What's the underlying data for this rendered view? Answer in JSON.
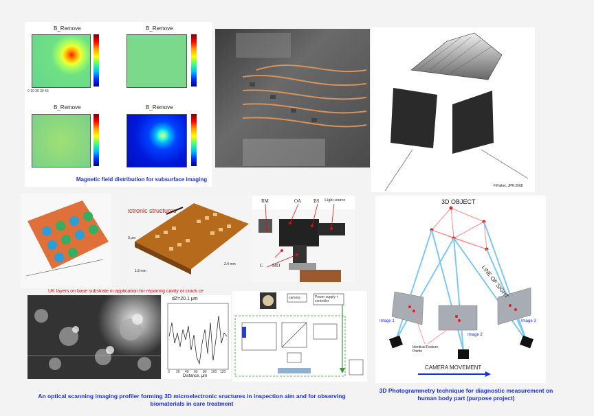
{
  "magnetic": {
    "map_titles": [
      "B_Remove",
      "B_Remove",
      "B_Remove",
      "B_Remove"
    ],
    "caption": "Magnetic field distribution for subsurface imaging"
  },
  "photogram_top": {
    "credit": "F.Paiker, JPR.2008"
  },
  "micro": {
    "title": "Microelectronic structures",
    "scale_3um": "3 μm",
    "scale_24": "2.4 mm",
    "scale_18": "1.8 mm",
    "overlay": "UK layers on base substrate in application for repairing cavity or crack ce"
  },
  "optics": {
    "labels": [
      "RM",
      "OA",
      "BS",
      "Light source",
      "C",
      "MO"
    ]
  },
  "profile": {
    "annotation": "dZ=20.1 μm",
    "xlabel": "Distance, μm",
    "xticks": [
      "0",
      "20",
      "40",
      "60",
      "80",
      "100",
      "120"
    ]
  },
  "caption_left": "An optical scanning imaging profiler forming 3D microelectronic sructures in inspection aim and for observing biomaterials in care treatment",
  "photo3d": {
    "title": "3D OBJECT",
    "line_of_sight": "LINE OF SIGHT",
    "images": [
      "Image 1",
      "Image 2",
      "Image 3"
    ],
    "identical": "Identical Feature Points",
    "movement": "CAMERA MOVEMENT",
    "caption": "3D Photogrammetry technique for diagnostic measurement on human body part (purpose project)"
  },
  "schematic": {
    "camera": "camera",
    "power": "Power supply + controller"
  },
  "colors": {
    "caption": "#1a2fd6",
    "accent": "#e01010"
  }
}
